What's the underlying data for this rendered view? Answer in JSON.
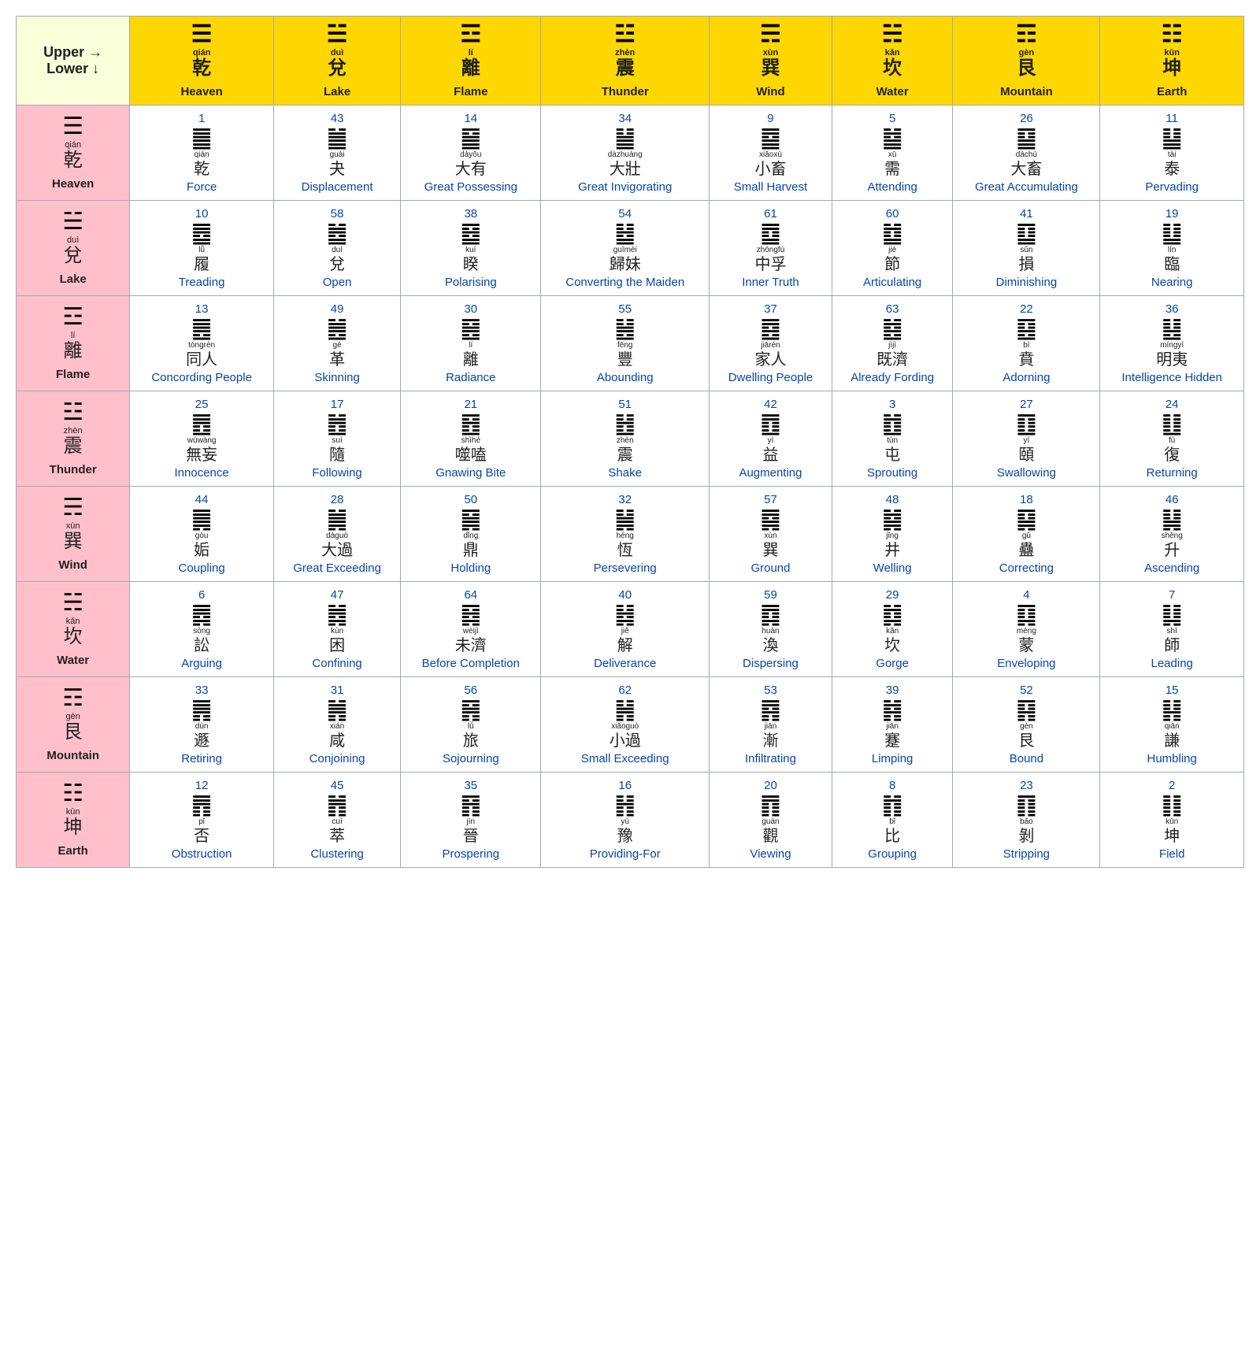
{
  "corner": {
    "upper": "Upper →",
    "lower": "Lower ↓"
  },
  "colors": {
    "corner_bg": "#f8ffd9",
    "col_head_bg": "#ffd700",
    "row_head_bg": "#ffc0cb",
    "link": "#0645ad",
    "text": "#202122",
    "border": "#a2a9b1"
  },
  "fonts": {
    "trigram_size": 30,
    "hexagram_size": 30,
    "cjk_size": 24,
    "cjk_sm_size": 20,
    "pinyin_size": 11,
    "pinyin_sm_size": 10,
    "eng_size": 15,
    "link_size": 15
  },
  "trigrams": [
    {
      "sym": "☰",
      "pinyin": "qián",
      "cjk": "乾",
      "eng": "Heaven"
    },
    {
      "sym": "☱",
      "pinyin": "duì",
      "cjk": "兌",
      "eng": "Lake"
    },
    {
      "sym": "☲",
      "pinyin": "lí",
      "cjk": "離",
      "eng": "Flame"
    },
    {
      "sym": "☳",
      "pinyin": "zhèn",
      "cjk": "震",
      "eng": "Thunder"
    },
    {
      "sym": "☴",
      "pinyin": "xùn",
      "cjk": "巽",
      "eng": "Wind"
    },
    {
      "sym": "☵",
      "pinyin": "kǎn",
      "cjk": "坎",
      "eng": "Water"
    },
    {
      "sym": "☶",
      "pinyin": "gèn",
      "cjk": "艮",
      "eng": "Mountain"
    },
    {
      "sym": "☷",
      "pinyin": "kūn",
      "cjk": "坤",
      "eng": "Earth"
    }
  ],
  "grid": [
    [
      {
        "n": 1,
        "h": "䷀",
        "p": "qián",
        "c": "乾",
        "e": "Force"
      },
      {
        "n": 43,
        "h": "䷪",
        "p": "guài",
        "c": "夬",
        "e": "Displacement"
      },
      {
        "n": 14,
        "h": "䷍",
        "p": "dàyǒu",
        "c": "大有",
        "e": "Great Possessing"
      },
      {
        "n": 34,
        "h": "䷡",
        "p": "dàzhuàng",
        "c": "大壯",
        "e": "Great Invigorating"
      },
      {
        "n": 9,
        "h": "䷈",
        "p": "xiǎoxù",
        "c": "小畜",
        "e": "Small Harvest"
      },
      {
        "n": 5,
        "h": "䷄",
        "p": "xū",
        "c": "需",
        "e": "Attending"
      },
      {
        "n": 26,
        "h": "䷙",
        "p": "dàchù",
        "c": "大畜",
        "e": "Great Accumulating"
      },
      {
        "n": 11,
        "h": "䷊",
        "p": "tài",
        "c": "泰",
        "e": "Pervading"
      }
    ],
    [
      {
        "n": 10,
        "h": "䷉",
        "p": "lǚ",
        "c": "履",
        "e": "Treading"
      },
      {
        "n": 58,
        "h": "䷹",
        "p": "duì",
        "c": "兌",
        "e": "Open"
      },
      {
        "n": 38,
        "h": "䷥",
        "p": "kuí",
        "c": "睽",
        "e": "Polarising"
      },
      {
        "n": 54,
        "h": "䷵",
        "p": "guīmèi",
        "c": "歸妹",
        "e": "Converting the Maiden"
      },
      {
        "n": 61,
        "h": "䷼",
        "p": "zhōngfú",
        "c": "中孚",
        "e": "Inner Truth"
      },
      {
        "n": 60,
        "h": "䷻",
        "p": "jié",
        "c": "節",
        "e": "Articulating"
      },
      {
        "n": 41,
        "h": "䷨",
        "p": "sǔn",
        "c": "損",
        "e": "Diminishing"
      },
      {
        "n": 19,
        "h": "䷒",
        "p": "lín",
        "c": "臨",
        "e": "Nearing"
      }
    ],
    [
      {
        "n": 13,
        "h": "䷌",
        "p": "tóngrén",
        "c": "同人",
        "e": "Concording People"
      },
      {
        "n": 49,
        "h": "䷰",
        "p": "gé",
        "c": "革",
        "e": "Skinning"
      },
      {
        "n": 30,
        "h": "䷝",
        "p": "lí",
        "c": "離",
        "e": "Radiance"
      },
      {
        "n": 55,
        "h": "䷶",
        "p": "fēng",
        "c": "豐",
        "e": "Abounding"
      },
      {
        "n": 37,
        "h": "䷤",
        "p": "jiārén",
        "c": "家人",
        "e": "Dwelling People"
      },
      {
        "n": 63,
        "h": "䷾",
        "p": "jìjì",
        "c": "既濟",
        "e": "Already Fording"
      },
      {
        "n": 22,
        "h": "䷕",
        "p": "bì",
        "c": "賁",
        "e": "Adorning"
      },
      {
        "n": 36,
        "h": "䷣",
        "p": "míngyí",
        "c": "明夷",
        "e": "Intelligence Hidden"
      }
    ],
    [
      {
        "n": 25,
        "h": "䷘",
        "p": "wúwàng",
        "c": "無妄",
        "e": "Innocence"
      },
      {
        "n": 17,
        "h": "䷐",
        "p": "suí",
        "c": "隨",
        "e": "Following"
      },
      {
        "n": 21,
        "h": "䷔",
        "p": "shìhé",
        "c": "噬嗑",
        "e": "Gnawing Bite"
      },
      {
        "n": 51,
        "h": "䷲",
        "p": "zhèn",
        "c": "震",
        "e": "Shake"
      },
      {
        "n": 42,
        "h": "䷩",
        "p": "yì",
        "c": "益",
        "e": "Augmenting"
      },
      {
        "n": 3,
        "h": "䷂",
        "p": "tún",
        "c": "屯",
        "e": "Sprouting"
      },
      {
        "n": 27,
        "h": "䷚",
        "p": "yí",
        "c": "頤",
        "e": "Swallowing"
      },
      {
        "n": 24,
        "h": "䷗",
        "p": "fù",
        "c": "復",
        "e": "Returning"
      }
    ],
    [
      {
        "n": 44,
        "h": "䷫",
        "p": "gòu",
        "c": "姤",
        "e": "Coupling"
      },
      {
        "n": 28,
        "h": "䷛",
        "p": "dàguò",
        "c": "大過",
        "e": "Great Exceeding"
      },
      {
        "n": 50,
        "h": "䷱",
        "p": "dǐng",
        "c": "鼎",
        "e": "Holding"
      },
      {
        "n": 32,
        "h": "䷟",
        "p": "héng",
        "c": "恆",
        "e": "Persevering"
      },
      {
        "n": 57,
        "h": "䷸",
        "p": "xùn",
        "c": "巽",
        "e": "Ground"
      },
      {
        "n": 48,
        "h": "䷯",
        "p": "jǐng",
        "c": "井",
        "e": "Welling"
      },
      {
        "n": 18,
        "h": "䷑",
        "p": "gǔ",
        "c": "蠱",
        "e": "Correcting"
      },
      {
        "n": 46,
        "h": "䷭",
        "p": "shēng",
        "c": "升",
        "e": "Ascending"
      }
    ],
    [
      {
        "n": 6,
        "h": "䷅",
        "p": "sòng",
        "c": "訟",
        "e": "Arguing"
      },
      {
        "n": 47,
        "h": "䷮",
        "p": "kùn",
        "c": "困",
        "e": "Confining"
      },
      {
        "n": 64,
        "h": "䷿",
        "p": "wèijì",
        "c": "未濟",
        "e": "Before Completion"
      },
      {
        "n": 40,
        "h": "䷧",
        "p": "jiě",
        "c": "解",
        "e": "Deliverance"
      },
      {
        "n": 59,
        "h": "䷺",
        "p": "huàn",
        "c": "渙",
        "e": "Dispersing"
      },
      {
        "n": 29,
        "h": "䷜",
        "p": "kǎn",
        "c": "坎",
        "e": "Gorge"
      },
      {
        "n": 4,
        "h": "䷃",
        "p": "méng",
        "c": "蒙",
        "e": "Enveloping"
      },
      {
        "n": 7,
        "h": "䷆",
        "p": "shī",
        "c": "師",
        "e": "Leading"
      }
    ],
    [
      {
        "n": 33,
        "h": "䷠",
        "p": "dùn",
        "c": "遯",
        "e": "Retiring"
      },
      {
        "n": 31,
        "h": "䷞",
        "p": "xián",
        "c": "咸",
        "e": "Conjoining"
      },
      {
        "n": 56,
        "h": "䷷",
        "p": "lǚ",
        "c": "旅",
        "e": "Sojourning"
      },
      {
        "n": 62,
        "h": "䷽",
        "p": "xiǎoguò",
        "c": "小過",
        "e": "Small Exceeding"
      },
      {
        "n": 53,
        "h": "䷴",
        "p": "jiān",
        "c": "漸",
        "e": "Infiltrating"
      },
      {
        "n": 39,
        "h": "䷦",
        "p": "jiǎn",
        "c": "蹇",
        "e": "Limping"
      },
      {
        "n": 52,
        "h": "䷳",
        "p": "gèn",
        "c": "艮",
        "e": "Bound"
      },
      {
        "n": 15,
        "h": "䷎",
        "p": "qiān",
        "c": "謙",
        "e": "Humbling"
      }
    ],
    [
      {
        "n": 12,
        "h": "䷋",
        "p": "pǐ",
        "c": "否",
        "e": "Obstruction"
      },
      {
        "n": 45,
        "h": "䷬",
        "p": "cuì",
        "c": "萃",
        "e": "Clustering"
      },
      {
        "n": 35,
        "h": "䷢",
        "p": "jìn",
        "c": "晉",
        "e": "Prospering"
      },
      {
        "n": 16,
        "h": "䷏",
        "p": "yù",
        "c": "豫",
        "e": "Providing-For"
      },
      {
        "n": 20,
        "h": "䷓",
        "p": "guàn",
        "c": "觀",
        "e": "Viewing"
      },
      {
        "n": 8,
        "h": "䷇",
        "p": "bǐ",
        "c": "比",
        "e": "Grouping"
      },
      {
        "n": 23,
        "h": "䷖",
        "p": "bāo",
        "c": "剝",
        "e": "Stripping"
      },
      {
        "n": 2,
        "h": "䷁",
        "p": "kūn",
        "c": "坤",
        "e": "Field"
      }
    ]
  ]
}
